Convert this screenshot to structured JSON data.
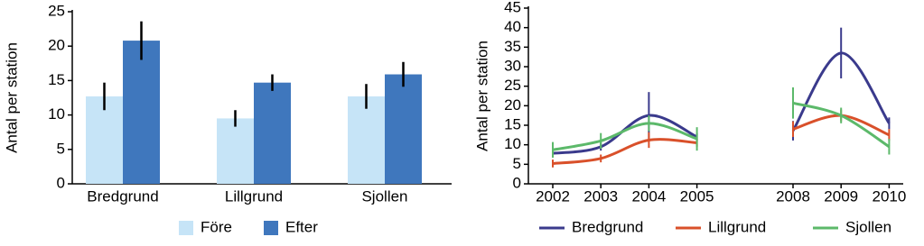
{
  "chart_data": [
    {
      "type": "bar",
      "y_label": "Antal per station",
      "categories": [
        "Bredgrund",
        "Lillgrund",
        "Sjollen"
      ],
      "series": [
        {
          "name": "Före",
          "color": "#c6e4f7",
          "values": [
            12.7,
            9.5,
            12.7
          ],
          "errors": [
            2.0,
            1.2,
            1.8
          ]
        },
        {
          "name": "Efter",
          "color": "#3f77bd",
          "values": [
            20.8,
            14.7,
            15.9
          ],
          "errors": [
            2.8,
            1.2,
            1.8
          ]
        }
      ],
      "ylim": [
        0,
        25
      ],
      "yticks": [
        0,
        5,
        10,
        15,
        20,
        25
      ],
      "legend": "bottom"
    },
    {
      "type": "line",
      "y_label": "Antal per station",
      "categories": [
        "2002",
        "2003",
        "2004",
        "2005",
        null,
        "2008",
        "2009",
        "2010"
      ],
      "series": [
        {
          "name": "Bredgrund",
          "color": "#3a3a8c",
          "values": [
            7.8,
            9.5,
            17.5,
            12,
            null,
            13.6,
            33.5,
            15.5
          ],
          "errors": [
            1,
            1,
            6,
            1,
            null,
            2.5,
            6.5,
            1.5
          ]
        },
        {
          "name": "Lillgrund",
          "color": "#d9502a",
          "values": [
            5.2,
            6.5,
            11.2,
            10.5,
            null,
            14,
            17.5,
            12.5
          ],
          "errors": [
            1,
            1,
            2,
            1,
            null,
            2,
            1.5,
            1.5
          ]
        },
        {
          "name": "Sjollen",
          "color": "#5cb96a",
          "values": [
            8.7,
            11,
            15.5,
            11.5,
            null,
            20.7,
            17.5,
            9.5
          ],
          "errors": [
            2,
            2,
            2,
            3,
            null,
            4,
            2,
            2
          ]
        }
      ],
      "ylim": [
        0,
        45
      ],
      "yticks": [
        0,
        5,
        10,
        15,
        20,
        25,
        30,
        35,
        40,
        45
      ],
      "legend": "bottom"
    }
  ]
}
